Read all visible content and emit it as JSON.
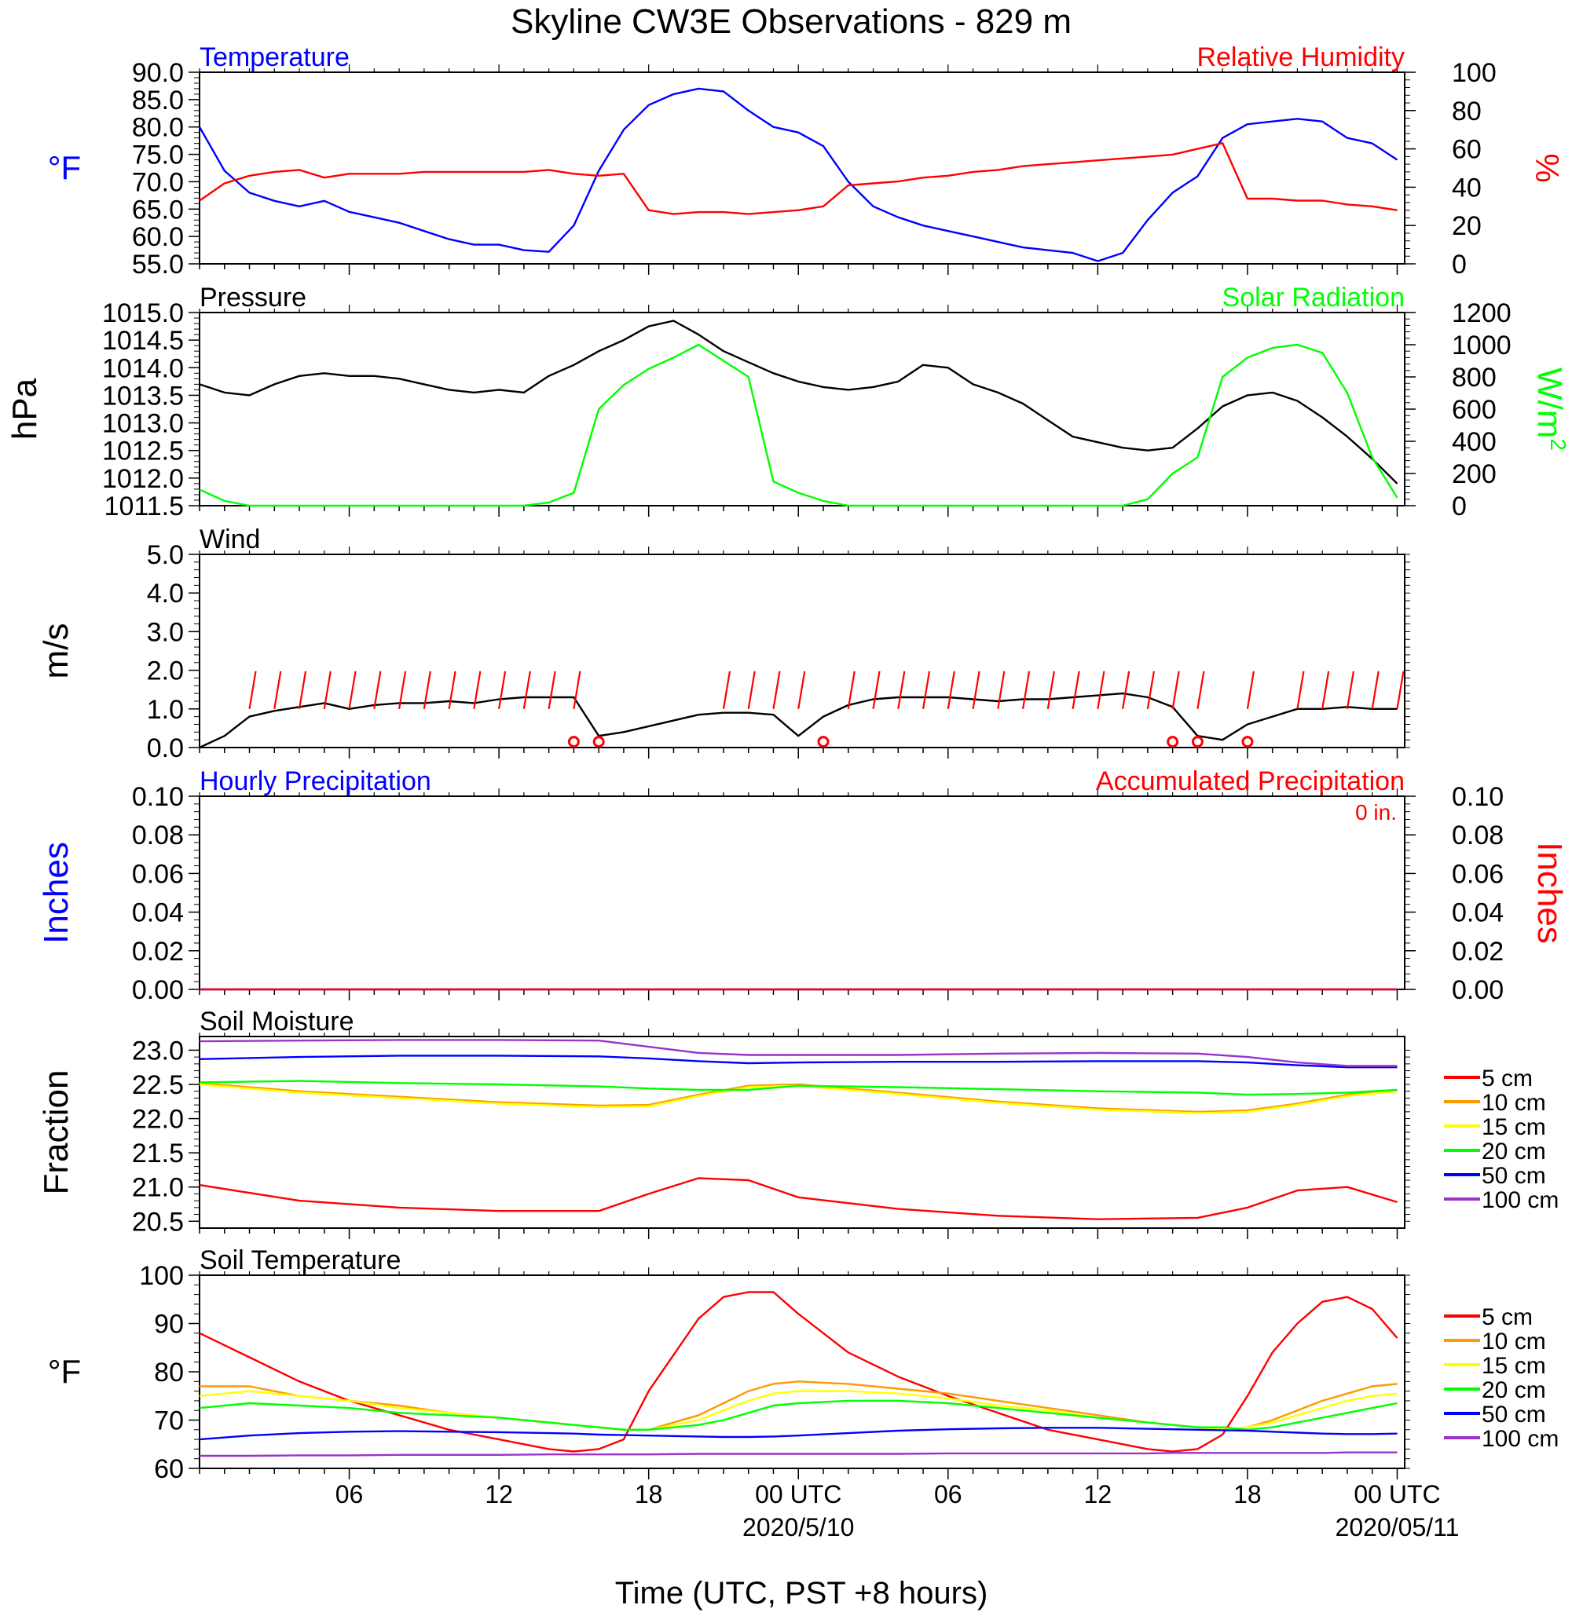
{
  "title": "Skyline CW3E Observations - 829 m",
  "xlabel": "Time (UTC, PST +8 hours)",
  "x_ticks": [
    {
      "hour": 6,
      "label": "06"
    },
    {
      "hour": 12,
      "label": "12"
    },
    {
      "hour": 18,
      "label": "18"
    },
    {
      "hour": 24,
      "label": "00 UTC",
      "sublabel": "2020/5/10"
    },
    {
      "hour": 30,
      "label": "06"
    },
    {
      "hour": 36,
      "label": "12"
    },
    {
      "hour": 42,
      "label": "18"
    },
    {
      "hour": 48,
      "label": "00 UTC",
      "sublabel": "2020/05/11"
    }
  ],
  "colors": {
    "blue": "#0000ff",
    "red": "#ff0000",
    "green": "#00ff00",
    "black": "#000000",
    "orange": "#ff9900",
    "yellow": "#ffff00",
    "purple": "#9933cc"
  },
  "chart_data": [
    {
      "type": "line",
      "id": "temp_rh",
      "left_title": "Temperature",
      "right_title": "Relative Humidity",
      "ylabel": "°F",
      "y2label": "%",
      "ylim": [
        55,
        90
      ],
      "y_ticks": [
        "55.0",
        "60.0",
        "65.0",
        "70.0",
        "75.0",
        "80.0",
        "85.0",
        "90.0"
      ],
      "y2lim": [
        0,
        100
      ],
      "y2_ticks": [
        "0",
        "20",
        "40",
        "60",
        "80",
        "100"
      ],
      "x_hours": [
        0,
        1,
        2,
        3,
        4,
        5,
        6,
        7,
        8,
        9,
        10,
        11,
        12,
        13,
        14,
        15,
        16,
        17,
        18,
        19,
        20,
        21,
        22,
        23,
        24,
        25,
        26,
        27,
        28,
        29,
        30,
        31,
        32,
        33,
        34,
        35,
        36,
        37,
        38,
        39,
        40,
        41,
        42,
        43,
        44,
        45,
        46,
        47,
        48
      ],
      "series": [
        {
          "name": "Temperature",
          "color": "blue",
          "axis": "left",
          "values": [
            80,
            72,
            68,
            66.5,
            65.5,
            66.5,
            64.5,
            63.5,
            62.5,
            61,
            59.5,
            58.5,
            58.5,
            57.5,
            57.2,
            62,
            72,
            79.5,
            84,
            86,
            87,
            86.5,
            83,
            80,
            79,
            76.5,
            70,
            65.5,
            63.5,
            62,
            61,
            60,
            59,
            58,
            57.5,
            57,
            55.5,
            57,
            63,
            68,
            71,
            78,
            80.5,
            81,
            81.5,
            81,
            78,
            77,
            74
          ]
        },
        {
          "name": "Relative Humidity",
          "color": "red",
          "axis": "right",
          "values": [
            33,
            42,
            46,
            48,
            49,
            45,
            47,
            47,
            47,
            48,
            48,
            48,
            48,
            48,
            49,
            47,
            46,
            47,
            28,
            26,
            27,
            27,
            26,
            27,
            28,
            30,
            41,
            42,
            43,
            45,
            46,
            48,
            49,
            51,
            52,
            53,
            54,
            55,
            56,
            57,
            60,
            63,
            34,
            34,
            33,
            33,
            31,
            30,
            28
          ]
        }
      ]
    },
    {
      "type": "line",
      "id": "pressure_solar",
      "left_title": "Pressure",
      "right_title": "Solar Radiation",
      "ylabel": "hPa",
      "y2label": "W/m",
      "y2label_sup": "2",
      "ylim": [
        1011.5,
        1015.0
      ],
      "y_ticks": [
        "1011.5",
        "1012.0",
        "1012.5",
        "1013.0",
        "1013.5",
        "1014.0",
        "1014.5",
        "1015.0"
      ],
      "y2lim": [
        0,
        1200
      ],
      "y2_ticks": [
        "0",
        "200",
        "400",
        "600",
        "800",
        "1000",
        "1200"
      ],
      "x_hours": [
        0,
        1,
        2,
        3,
        4,
        5,
        6,
        7,
        8,
        9,
        10,
        11,
        12,
        13,
        14,
        15,
        16,
        17,
        18,
        19,
        20,
        21,
        22,
        23,
        24,
        25,
        26,
        27,
        28,
        29,
        30,
        31,
        32,
        33,
        34,
        35,
        36,
        37,
        38,
        39,
        40,
        41,
        42,
        43,
        44,
        45,
        46,
        47,
        48
      ],
      "series": [
        {
          "name": "Pressure",
          "color": "black",
          "axis": "left",
          "values": [
            1013.7,
            1013.55,
            1013.5,
            1013.7,
            1013.85,
            1013.9,
            1013.85,
            1013.85,
            1013.8,
            1013.7,
            1013.6,
            1013.55,
            1013.6,
            1013.55,
            1013.85,
            1014.05,
            1014.3,
            1014.5,
            1014.75,
            1014.85,
            1014.6,
            1014.3,
            1014.1,
            1013.9,
            1013.75,
            1013.65,
            1013.6,
            1013.65,
            1013.75,
            1014.05,
            1014.0,
            1013.7,
            1013.55,
            1013.35,
            1013.05,
            1012.75,
            1012.65,
            1012.55,
            1012.5,
            1012.55,
            1012.9,
            1013.3,
            1013.5,
            1013.55,
            1013.4,
            1013.1,
            1012.75,
            1012.35,
            1011.9
          ]
        },
        {
          "name": "Solar Radiation",
          "color": "green",
          "axis": "right",
          "values": [
            100,
            30,
            0,
            0,
            0,
            0,
            0,
            0,
            0,
            0,
            0,
            0,
            0,
            0,
            20,
            80,
            600,
            750,
            850,
            920,
            1000,
            900,
            800,
            150,
            80,
            30,
            0,
            0,
            0,
            0,
            0,
            0,
            0,
            0,
            0,
            0,
            0,
            0,
            40,
            200,
            300,
            800,
            920,
            980,
            1000,
            950,
            700,
            300,
            50
          ]
        }
      ]
    },
    {
      "type": "line",
      "id": "wind",
      "left_title": "Wind",
      "ylabel": "m/s",
      "ylim": [
        0,
        5
      ],
      "y_ticks": [
        "0.0",
        "1.0",
        "2.0",
        "3.0",
        "4.0",
        "5.0"
      ],
      "x_hours": [
        0,
        1,
        2,
        3,
        4,
        5,
        6,
        7,
        8,
        9,
        10,
        11,
        12,
        13,
        14,
        15,
        16,
        17,
        18,
        19,
        20,
        21,
        22,
        23,
        24,
        25,
        26,
        27,
        28,
        29,
        30,
        31,
        32,
        33,
        34,
        35,
        36,
        37,
        38,
        39,
        40,
        41,
        42,
        43,
        44,
        45,
        46,
        47,
        48
      ],
      "series": [
        {
          "name": "Wind Speed",
          "color": "black",
          "axis": "left",
          "values": [
            0,
            0.3,
            0.8,
            0.95,
            1.05,
            1.15,
            1.0,
            1.1,
            1.15,
            1.15,
            1.2,
            1.15,
            1.25,
            1.3,
            1.3,
            1.3,
            0.3,
            0.4,
            0.55,
            0.7,
            0.85,
            0.9,
            0.9,
            0.85,
            0.3,
            0.8,
            1.1,
            1.25,
            1.3,
            1.3,
            1.3,
            1.25,
            1.2,
            1.25,
            1.25,
            1.3,
            1.35,
            1.4,
            1.3,
            1.05,
            0.3,
            0.2,
            0.6,
            0.8,
            1.0,
            1.0,
            1.05,
            1.0,
            1.0
          ]
        },
        {
          "name": "Wind Barbs",
          "color": "red",
          "axis": "left",
          "barb_hours": [
            2,
            3,
            4,
            5,
            6,
            7,
            8,
            9,
            10,
            11,
            12,
            13,
            14,
            15,
            21,
            22,
            23,
            24,
            26,
            27,
            28,
            29,
            30,
            31,
            32,
            33,
            34,
            35,
            36,
            37,
            38,
            39,
            40,
            42,
            44,
            45,
            46,
            47,
            48
          ],
          "calm_hours": [
            15,
            16,
            25,
            39,
            40,
            42
          ]
        }
      ]
    },
    {
      "type": "line",
      "id": "precip",
      "left_title": "Hourly Precipitation",
      "right_title": "Accumulated Precipitation",
      "annotation": "0 in.",
      "ylabel": "Inches",
      "y2label": "Inches",
      "ylim": [
        0,
        0.1
      ],
      "y_ticks": [
        "0.00",
        "0.02",
        "0.04",
        "0.06",
        "0.08",
        "0.10"
      ],
      "y2lim": [
        0,
        0.1
      ],
      "y2_ticks": [
        "0.00",
        "0.02",
        "0.04",
        "0.06",
        "0.08",
        "0.10"
      ],
      "x_hours": [
        0,
        48
      ],
      "series": [
        {
          "name": "Hourly Precipitation",
          "color": "blue",
          "axis": "left",
          "values": [
            0,
            0
          ]
        },
        {
          "name": "Accumulated Precipitation",
          "color": "red",
          "axis": "right",
          "values": [
            0,
            0
          ]
        }
      ]
    },
    {
      "type": "line",
      "id": "soil_moisture",
      "left_title": "Soil Moisture",
      "ylabel": "Fraction",
      "ylim": [
        20.4,
        23.2
      ],
      "y_ticks": [
        "20.5",
        "21.0",
        "21.5",
        "22.0",
        "22.5",
        "23.0"
      ],
      "legend": [
        "5 cm",
        "10 cm",
        "15 cm",
        "20 cm",
        "50 cm",
        "100 cm"
      ],
      "x_hours": [
        0,
        4,
        8,
        12,
        16,
        18,
        20,
        22,
        24,
        28,
        32,
        36,
        40,
        42,
        44,
        46,
        48
      ],
      "series": [
        {
          "name": "5 cm",
          "color": "red",
          "values": [
            21.03,
            20.8,
            20.7,
            20.65,
            20.65,
            20.9,
            21.13,
            21.1,
            20.85,
            20.68,
            20.58,
            20.53,
            20.55,
            20.7,
            20.95,
            21.0,
            20.78
          ]
        },
        {
          "name": "10 cm",
          "color": "orange",
          "values": [
            22.52,
            22.4,
            22.32,
            22.24,
            22.19,
            22.2,
            22.35,
            22.48,
            22.5,
            22.38,
            22.25,
            22.15,
            22.1,
            22.12,
            22.22,
            22.35,
            22.42
          ]
        },
        {
          "name": "15 cm",
          "color": "yellow",
          "values": [
            22.5,
            22.38,
            22.3,
            22.22,
            22.17,
            22.18,
            22.33,
            22.46,
            22.48,
            22.36,
            22.23,
            22.13,
            22.08,
            22.1,
            22.2,
            22.33,
            22.4
          ]
        },
        {
          "name": "20 cm",
          "color": "green",
          "values": [
            22.53,
            22.55,
            22.52,
            22.5,
            22.47,
            22.44,
            22.42,
            22.42,
            22.48,
            22.46,
            22.43,
            22.4,
            22.38,
            22.35,
            22.36,
            22.38,
            22.42
          ]
        },
        {
          "name": "50 cm",
          "color": "blue",
          "values": [
            22.87,
            22.9,
            22.92,
            22.92,
            22.91,
            22.88,
            22.84,
            22.81,
            22.82,
            22.83,
            22.83,
            22.84,
            22.84,
            22.82,
            22.78,
            22.75,
            22.75
          ]
        },
        {
          "name": "100 cm",
          "color": "purple",
          "values": [
            23.13,
            23.14,
            23.15,
            23.15,
            23.14,
            23.05,
            22.96,
            22.93,
            22.93,
            22.93,
            22.95,
            22.96,
            22.95,
            22.9,
            22.82,
            22.77,
            22.77
          ]
        }
      ]
    },
    {
      "type": "line",
      "id": "soil_temperature",
      "left_title": "Soil Temperature",
      "ylabel": "°F",
      "ylim": [
        60,
        100
      ],
      "y_ticks": [
        "60",
        "70",
        "80",
        "90",
        "100"
      ],
      "legend": [
        "5 cm",
        "10 cm",
        "15 cm",
        "20 cm",
        "50 cm",
        "100 cm"
      ],
      "x_hours": [
        0,
        2,
        4,
        6,
        8,
        10,
        12,
        14,
        15,
        16,
        17,
        18,
        20,
        21,
        22,
        23,
        24,
        26,
        28,
        30,
        32,
        34,
        36,
        38,
        39,
        40,
        41,
        42,
        43,
        44,
        45,
        46,
        47,
        48
      ],
      "series": [
        {
          "name": "5 cm",
          "color": "red",
          "values": [
            88,
            83,
            78,
            74,
            71,
            68,
            66,
            64,
            63.5,
            64,
            66,
            76,
            91,
            95.5,
            96.5,
            96.5,
            92,
            84,
            79,
            75,
            71.5,
            68,
            66,
            64,
            63.5,
            64,
            67,
            75,
            84,
            90,
            94.5,
            95.5,
            93,
            87
          ]
        },
        {
          "name": "10 cm",
          "color": "orange",
          "values": [
            77,
            77,
            75,
            74,
            73,
            71.5,
            70.5,
            69.5,
            69,
            68.5,
            68,
            68,
            71,
            73.5,
            76,
            77.5,
            78,
            77.5,
            76.5,
            75.5,
            74,
            72.5,
            71,
            69.5,
            69,
            68.5,
            68,
            68.5,
            70,
            72,
            74,
            75.5,
            77,
            77.5
          ]
        },
        {
          "name": "15 cm",
          "color": "yellow",
          "values": [
            75,
            76,
            75,
            74,
            72.5,
            71.5,
            70.5,
            69.5,
            69,
            68.5,
            68,
            68,
            70,
            72,
            74,
            75.5,
            76,
            76,
            75.5,
            74.5,
            73,
            72,
            70.5,
            69.5,
            69,
            68.5,
            68,
            68.5,
            69.5,
            71,
            72.5,
            74,
            75,
            75.5
          ]
        },
        {
          "name": "20 cm",
          "color": "green",
          "values": [
            72.5,
            73.5,
            73,
            72.5,
            71.5,
            71,
            70.5,
            69.5,
            69,
            68.5,
            68,
            68,
            69,
            70,
            71.5,
            73,
            73.5,
            74,
            74,
            73.5,
            72.5,
            71.5,
            70.5,
            69.5,
            69,
            68.5,
            68.5,
            68,
            68.5,
            69.5,
            70.5,
            71.5,
            72.5,
            73.5
          ]
        },
        {
          "name": "50 cm",
          "color": "blue",
          "values": [
            66,
            66.8,
            67.3,
            67.6,
            67.7,
            67.6,
            67.5,
            67.3,
            67.2,
            67,
            66.9,
            66.8,
            66.6,
            66.5,
            66.5,
            66.6,
            66.8,
            67.3,
            67.8,
            68.1,
            68.3,
            68.4,
            68.4,
            68.2,
            68.1,
            68,
            67.9,
            67.8,
            67.6,
            67.4,
            67.2,
            67.1,
            67.1,
            67.2
          ]
        },
        {
          "name": "100 cm",
          "color": "purple",
          "values": [
            62.6,
            62.6,
            62.7,
            62.7,
            62.8,
            62.8,
            62.8,
            62.9,
            62.9,
            62.9,
            62.9,
            62.9,
            63,
            63,
            63,
            63,
            63,
            63,
            63,
            63.1,
            63.1,
            63.1,
            63.1,
            63.1,
            63.2,
            63.2,
            63.2,
            63.2,
            63.2,
            63.2,
            63.2,
            63.3,
            63.3,
            63.3
          ]
        }
      ]
    }
  ]
}
